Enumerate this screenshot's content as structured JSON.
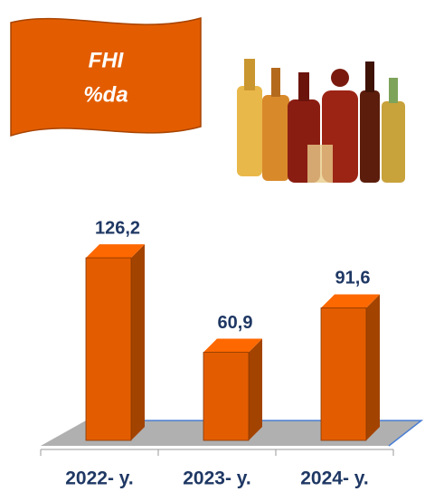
{
  "chart_data": {
    "type": "bar3d",
    "title": [
      "FHI",
      "%da"
    ],
    "categories": [
      "2022- y.",
      "2023- y.",
      "2024- y."
    ],
    "values": [
      126.2,
      60.9,
      91.6
    ],
    "value_labels": [
      "126,2",
      "60,9",
      "91,6"
    ],
    "color": "#e35d00"
  }
}
